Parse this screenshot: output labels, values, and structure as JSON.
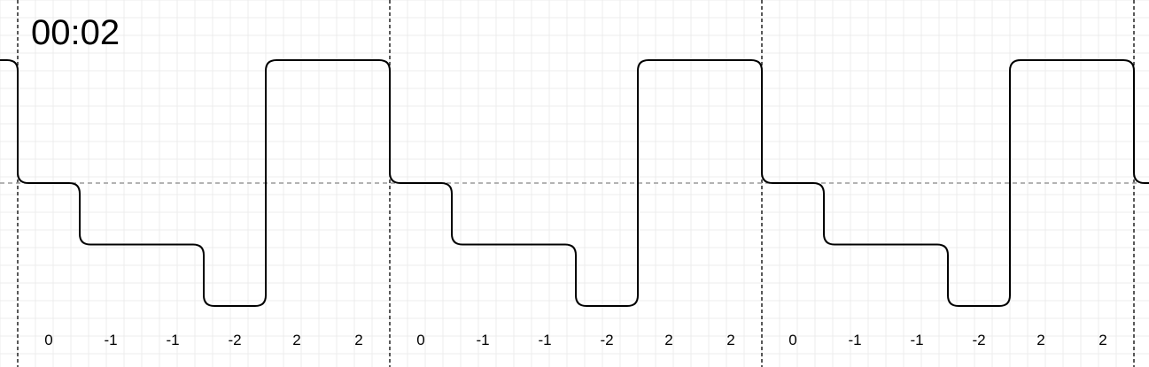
{
  "timer": "00:02",
  "chart_data": {
    "type": "line",
    "title": "",
    "xlabel": "",
    "ylabel": "",
    "grid": true,
    "symbols_per_frame": 6,
    "frames": 3,
    "symbols": [
      "0",
      "-1",
      "-1",
      "-2",
      "2",
      "2"
    ],
    "symbol_values": [
      0,
      -1,
      -1,
      -2,
      2,
      2
    ],
    "ylim": [
      -2,
      2
    ],
    "colors": {
      "signal": "#000000",
      "zero_line": "#9a9a9a",
      "frame_divider": "#000000",
      "grid": "#ececec"
    }
  }
}
